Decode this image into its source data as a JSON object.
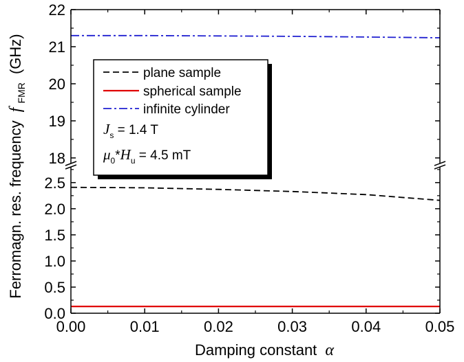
{
  "chart_data": {
    "type": "line",
    "broken_y_axis": true,
    "x": [
      0.0,
      0.01,
      0.02,
      0.03,
      0.04,
      0.05
    ],
    "xlim": [
      0.0,
      0.05
    ],
    "x_ticks": [
      "0.00",
      "0.01",
      "0.02",
      "0.03",
      "0.04",
      "0.05"
    ],
    "xlabel": "Damping constant α",
    "xlabel_main": "Damping constant",
    "xlabel_symbol": "α",
    "ylabel": "Ferromagn. res. frequency f_FMR (GHz)",
    "ylabel_main": "Ferromagn. res. frequency",
    "ylabel_symbol": "f",
    "ylabel_subscript": "FMR",
    "ylabel_unit": "(GHz)",
    "ylim_lower": [
      0.0,
      2.8
    ],
    "ylim_upper": [
      17.85,
      22.0
    ],
    "y_ticks_lower": [
      "0.0",
      "0.5",
      "1.0",
      "1.5",
      "2.0",
      "2.5"
    ],
    "y_ticks_upper": [
      "18",
      "19",
      "20",
      "21",
      "22"
    ],
    "series": [
      {
        "name": "plane sample",
        "style": "dashed",
        "color": "#000000",
        "y": [
          2.41,
          2.4,
          2.37,
          2.33,
          2.27,
          2.16
        ]
      },
      {
        "name": "spherical sample",
        "style": "solid",
        "color": "#e00000",
        "y": [
          0.13,
          0.13,
          0.13,
          0.13,
          0.13,
          0.13
        ]
      },
      {
        "name": "infinite cylinder",
        "style": "dashdot",
        "color": "#1f1fd0",
        "y": [
          21.3,
          21.3,
          21.29,
          21.28,
          21.26,
          21.24
        ]
      }
    ],
    "annotations": [
      {
        "symbol": "J",
        "subscript": "s",
        "text": " = 1.4 T"
      },
      {
        "symbol": "μ",
        "subscript": "0",
        "text": "*",
        "symbol2": "H",
        "subscript2": "u",
        "text2": " = 4.5 mT"
      }
    ],
    "legend_position": "upper-left",
    "grid": false
  }
}
